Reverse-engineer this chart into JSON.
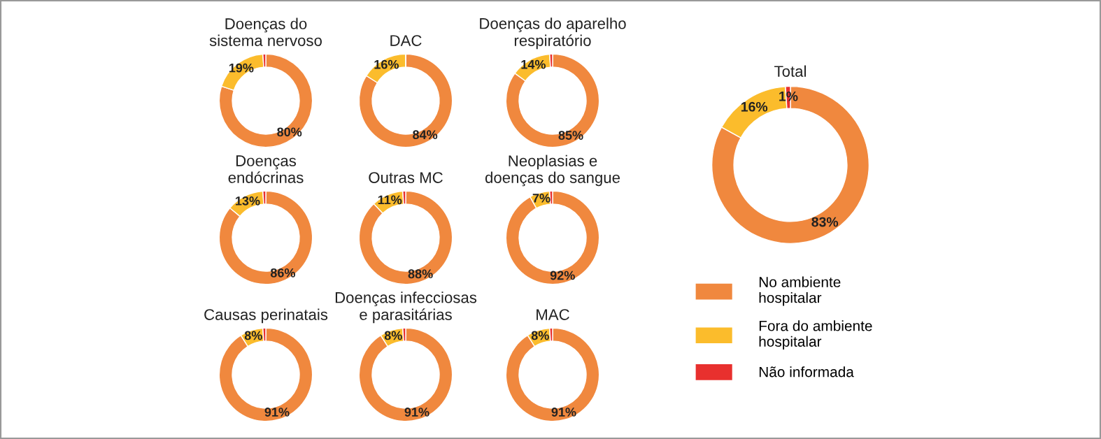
{
  "chart_data": [
    {
      "type": "donut",
      "title": "Doenças do\nsistema nervoso",
      "categories": [
        null,
        null,
        null
      ],
      "values": [
        80,
        19,
        1
      ],
      "colors": [
        "#f0883e",
        "#fbbc2c",
        "#e8302e"
      ],
      "value_labels": [
        "80%",
        "19%",
        null
      ]
    },
    {
      "type": "donut",
      "title": "DAC",
      "categories": [
        null,
        null,
        null
      ],
      "values": [
        84,
        16,
        0
      ],
      "colors": [
        "#f0883e",
        "#fbbc2c",
        "#e8302e"
      ],
      "value_labels": [
        "84%",
        "16%",
        null
      ]
    },
    {
      "type": "donut",
      "title": "Doenças do aparelho\nrespiratório",
      "categories": [
        null,
        null,
        null
      ],
      "values": [
        85,
        14,
        1
      ],
      "colors": [
        "#f0883e",
        "#fbbc2c",
        "#e8302e"
      ],
      "value_labels": [
        "85%",
        "14%",
        null
      ]
    },
    {
      "type": "donut",
      "title": "Doenças\nendócrinas",
      "categories": [
        null,
        null,
        null
      ],
      "values": [
        86,
        13,
        1
      ],
      "colors": [
        "#f0883e",
        "#fbbc2c",
        "#e8302e"
      ],
      "value_labels": [
        "86%",
        "13%",
        null
      ]
    },
    {
      "type": "donut",
      "title": "Outras MC",
      "categories": [
        null,
        null,
        null
      ],
      "values": [
        88,
        11,
        1
      ],
      "colors": [
        "#f0883e",
        "#fbbc2c",
        "#e8302e"
      ],
      "value_labels": [
        "88%",
        "11%",
        null
      ]
    },
    {
      "type": "donut",
      "title": "Neoplasias e\ndoenças do sangue",
      "categories": [
        null,
        null,
        null
      ],
      "values": [
        92,
        7,
        1
      ],
      "colors": [
        "#f0883e",
        "#fbbc2c",
        "#e8302e"
      ],
      "value_labels": [
        "92%",
        "7%",
        null
      ]
    },
    {
      "type": "donut",
      "title": "Causas perinatais",
      "categories": [
        null,
        null,
        null
      ],
      "values": [
        91,
        8,
        1
      ],
      "colors": [
        "#f0883e",
        "#fbbc2c",
        "#e8302e"
      ],
      "value_labels": [
        "91%",
        "8%",
        null
      ]
    },
    {
      "type": "donut",
      "title": "Doenças infecciosas\ne parasitárias",
      "categories": [
        null,
        null,
        null
      ],
      "values": [
        91,
        8,
        1
      ],
      "colors": [
        "#f0883e",
        "#fbbc2c",
        "#e8302e"
      ],
      "value_labels": [
        "91%",
        "8%",
        null
      ]
    },
    {
      "type": "donut",
      "title": "MAC",
      "categories": [
        null,
        null,
        null
      ],
      "values": [
        91,
        8,
        1
      ],
      "colors": [
        "#f0883e",
        "#fbbc2c",
        "#e8302e"
      ],
      "value_labels": [
        "91%",
        "8%",
        null
      ]
    },
    {
      "type": "donut",
      "title": "Total",
      "categories": [
        "No ambiente\nhospitalar",
        "Fora do ambiente\nhospitalar",
        "Não informada"
      ],
      "values": [
        83,
        16,
        1
      ],
      "colors": [
        "#f0883e",
        "#fbbc2c",
        "#e8302e"
      ],
      "value_labels": [
        "83%",
        "16%",
        "1%"
      ],
      "legend": "bottom"
    }
  ]
}
